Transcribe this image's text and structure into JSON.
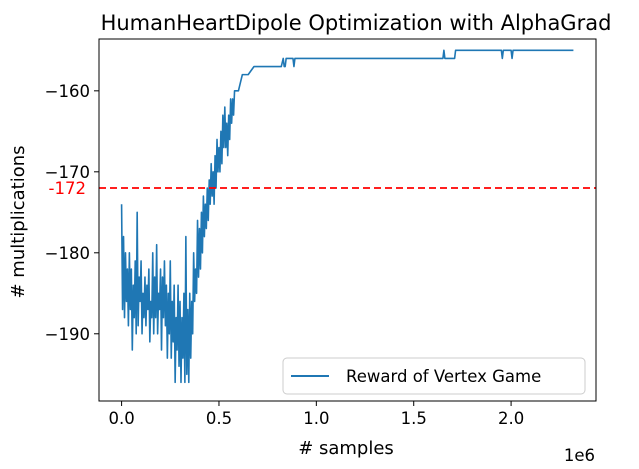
{
  "chart_data": {
    "type": "line",
    "title": "HumanHeartDipole Optimization with AlphaGrad",
    "xlabel": "# samples",
    "ylabel": "# multiplications",
    "x_offset_label": "1e6",
    "xlim": [
      -0.116,
      2.436
    ],
    "ylim": [
      -198.3,
      -153.6
    ],
    "x_ticks": [
      0.0,
      0.5,
      1.0,
      1.5,
      2.0
    ],
    "x_tick_labels": [
      "0.0",
      "0.5",
      "1.0",
      "1.5",
      "2.0"
    ],
    "y_ticks": [
      -190,
      -180,
      -170,
      -160
    ],
    "y_tick_labels": [
      "−190",
      "−180",
      "−170",
      "−160"
    ],
    "grid": false,
    "legend_position": "lower-right",
    "series": [
      {
        "name": "Reward of Vertex Game",
        "color": "#1f77b4",
        "points": [
          [
            0.0,
            -174
          ],
          [
            0.005,
            -187
          ],
          [
            0.01,
            -178
          ],
          [
            0.015,
            -188
          ],
          [
            0.02,
            -180
          ],
          [
            0.025,
            -186
          ],
          [
            0.03,
            -182
          ],
          [
            0.035,
            -189
          ],
          [
            0.04,
            -180
          ],
          [
            0.045,
            -187
          ],
          [
            0.05,
            -182
          ],
          [
            0.055,
            -192
          ],
          [
            0.06,
            -184
          ],
          [
            0.065,
            -188
          ],
          [
            0.07,
            -181
          ],
          [
            0.075,
            -190
          ],
          [
            0.08,
            -175
          ],
          [
            0.085,
            -189
          ],
          [
            0.09,
            -183
          ],
          [
            0.095,
            -186
          ],
          [
            0.1,
            -181
          ],
          [
            0.105,
            -190
          ],
          [
            0.11,
            -185
          ],
          [
            0.115,
            -188
          ],
          [
            0.12,
            -183
          ],
          [
            0.125,
            -189
          ],
          [
            0.13,
            -184
          ],
          [
            0.135,
            -187
          ],
          [
            0.14,
            -182
          ],
          [
            0.145,
            -191
          ],
          [
            0.15,
            -186
          ],
          [
            0.155,
            -188
          ],
          [
            0.16,
            -180
          ],
          [
            0.165,
            -190
          ],
          [
            0.17,
            -183
          ],
          [
            0.175,
            -188
          ],
          [
            0.18,
            -179
          ],
          [
            0.185,
            -190
          ],
          [
            0.19,
            -185
          ],
          [
            0.195,
            -187
          ],
          [
            0.2,
            -182
          ],
          [
            0.205,
            -192
          ],
          [
            0.21,
            -183
          ],
          [
            0.215,
            -188
          ],
          [
            0.22,
            -181
          ],
          [
            0.225,
            -189
          ],
          [
            0.23,
            -184
          ],
          [
            0.235,
            -193
          ],
          [
            0.24,
            -185
          ],
          [
            0.245,
            -190
          ],
          [
            0.25,
            -181
          ],
          [
            0.255,
            -193
          ],
          [
            0.26,
            -186
          ],
          [
            0.265,
            -191
          ],
          [
            0.27,
            -184
          ],
          [
            0.275,
            -196
          ],
          [
            0.28,
            -188
          ],
          [
            0.285,
            -192
          ],
          [
            0.29,
            -184
          ],
          [
            0.295,
            -194
          ],
          [
            0.3,
            -186
          ],
          [
            0.305,
            -196
          ],
          [
            0.31,
            -188
          ],
          [
            0.315,
            -193
          ],
          [
            0.32,
            -185
          ],
          [
            0.325,
            -196
          ],
          [
            0.33,
            -178
          ],
          [
            0.335,
            -195
          ],
          [
            0.34,
            -187
          ],
          [
            0.345,
            -196
          ],
          [
            0.35,
            -185
          ],
          [
            0.355,
            -193
          ],
          [
            0.36,
            -186
          ],
          [
            0.365,
            -190
          ],
          [
            0.37,
            -180
          ],
          [
            0.375,
            -186
          ],
          [
            0.38,
            -182
          ],
          [
            0.385,
            -185
          ],
          [
            0.39,
            -176
          ],
          [
            0.395,
            -183
          ],
          [
            0.4,
            -177
          ],
          [
            0.405,
            -182
          ],
          [
            0.41,
            -175
          ],
          [
            0.415,
            -180
          ],
          [
            0.42,
            -173
          ],
          [
            0.425,
            -178
          ],
          [
            0.43,
            -174
          ],
          [
            0.435,
            -177
          ],
          [
            0.44,
            -172
          ],
          [
            0.445,
            -176
          ],
          [
            0.45,
            -171
          ],
          [
            0.455,
            -174
          ],
          [
            0.46,
            -169
          ],
          [
            0.465,
            -173
          ],
          [
            0.47,
            -170
          ],
          [
            0.475,
            -174
          ],
          [
            0.48,
            -168
          ],
          [
            0.485,
            -172
          ],
          [
            0.49,
            -166
          ],
          [
            0.495,
            -170
          ],
          [
            0.5,
            -167
          ],
          [
            0.505,
            -170
          ],
          [
            0.51,
            -165
          ],
          [
            0.515,
            -169
          ],
          [
            0.52,
            -163
          ],
          [
            0.525,
            -167
          ],
          [
            0.53,
            -162
          ],
          [
            0.535,
            -167
          ],
          [
            0.54,
            -164
          ],
          [
            0.545,
            -168
          ],
          [
            0.55,
            -163
          ],
          [
            0.555,
            -166
          ],
          [
            0.56,
            -161
          ],
          [
            0.565,
            -164
          ],
          [
            0.57,
            -161
          ],
          [
            0.575,
            -163
          ],
          [
            0.58,
            -160
          ],
          [
            0.59,
            -160
          ],
          [
            0.6,
            -160
          ],
          [
            0.61,
            -159
          ],
          [
            0.62,
            -158
          ],
          [
            0.65,
            -158
          ],
          [
            0.68,
            -157
          ],
          [
            0.82,
            -157
          ],
          [
            0.83,
            -156
          ],
          [
            0.835,
            -157
          ],
          [
            0.84,
            -157
          ],
          [
            0.845,
            -156
          ],
          [
            0.88,
            -156
          ],
          [
            0.885,
            -157
          ],
          [
            0.89,
            -156
          ],
          [
            1.65,
            -156
          ],
          [
            1.655,
            -155
          ],
          [
            1.66,
            -156
          ],
          [
            1.71,
            -156
          ],
          [
            1.715,
            -155
          ],
          [
            1.95,
            -155
          ],
          [
            1.955,
            -156
          ],
          [
            1.96,
            -155
          ],
          [
            2.0,
            -155
          ],
          [
            2.005,
            -156
          ],
          [
            2.01,
            -155
          ],
          [
            2.32,
            -155
          ]
        ]
      }
    ],
    "reference_line": {
      "y": -172,
      "label": "-172",
      "color": "#ff0000",
      "style": "dashed"
    }
  }
}
